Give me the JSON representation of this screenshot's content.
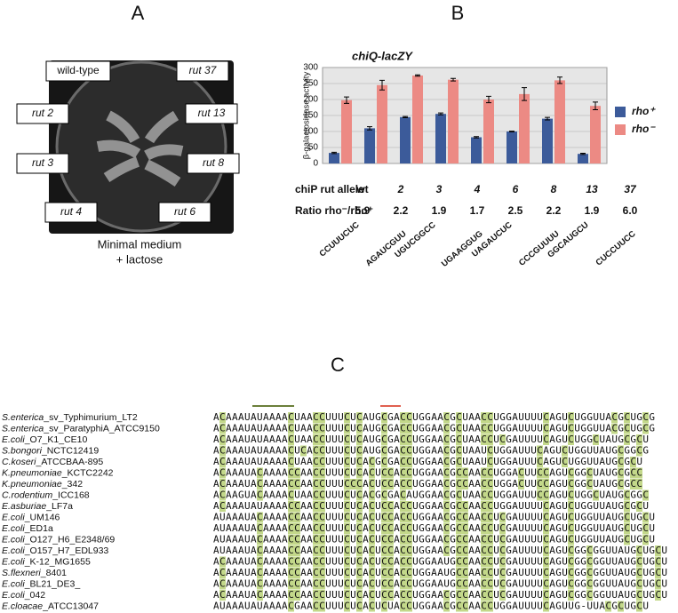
{
  "panel_a": {
    "label": "A",
    "plate_labels": [
      "wild-type",
      "rut 37",
      "rut 2",
      "rut 13",
      "rut 3",
      "rut 8",
      "rut 4",
      "rut 6"
    ],
    "caption": [
      "Minimal medium",
      "+ lactose"
    ]
  },
  "chart_data": {
    "type": "bar",
    "panel_label": "B",
    "title": "chiQ-lacZY",
    "y_label": "β-galactosidase activity",
    "categories": [
      "wt",
      "2",
      "3",
      "4",
      "6",
      "8",
      "13",
      "37"
    ],
    "series": [
      {
        "name": "rho⁺",
        "color": "#3c5b9a",
        "values": [
          33,
          110,
          145,
          155,
          82,
          100,
          140,
          30
        ],
        "errors": [
          2,
          5,
          2,
          3,
          2,
          1,
          4,
          2
        ]
      },
      {
        "name": "rho⁻",
        "color": "#ec8a84",
        "values": [
          198,
          245,
          275,
          262,
          200,
          217,
          260,
          180
        ],
        "errors": [
          10,
          15,
          2,
          4,
          10,
          20,
          10,
          12
        ]
      }
    ],
    "ylim": [
      0,
      300
    ],
    "yticks": [
      0,
      50,
      100,
      150,
      200,
      250,
      300
    ],
    "grid": true,
    "allele_title": "chiP rut allele",
    "ratio_title": "Ratio rho⁻/rho⁺",
    "ratios": [
      "5.9",
      "2.2",
      "1.9",
      "1.7",
      "2.5",
      "2.2",
      "1.9",
      "6.0"
    ],
    "sequences": [
      "CCUUUCUC",
      "AGAUCGUU",
      "UGUCGGCC",
      "UGAAGGUG",
      "UAGAUCUC",
      "CCCGUUUU",
      "GGCAUGCU",
      "CUCCUUCC"
    ]
  },
  "panel_c": {
    "label": "C",
    "rows": [
      {
        "species": "S.enterica",
        "strain": "_sv_Typhimurium_LT2",
        "sequence": "ACAAAUAUAAAACUAACCUUUCUCAUGCGACCUGGAACGCUAACCUGGAUUUUCAGUCUGGUUACGCUGCG"
      },
      {
        "species": "S.enterica",
        "strain": "_sv_ParatyphiA_ATCC9150",
        "sequence": "ACAAAUAUAAAACUAACCUUUCUCAUGCGACCUGGAACGCUAACCUGGAUUUUCAGUCUGGUUACGCUGCG"
      },
      {
        "species": "E.coli",
        "strain": "_O7_K1_CE10",
        "sequence": "ACAAAUAUAAAACUAACCUUUCUCAUGCGACCUGGAACGCUAACCUCGAUUUUCAGUCUGGCUAUGCGCU"
      },
      {
        "species": "S.bongori",
        "strain": "_NCTC12419",
        "sequence": "ACAAAUAUAAAACUCACCUUUCUCAUGCGACCUGGAACGCUAAUCUGGAUUUCAGUCUGGUUAUGCGGCG"
      },
      {
        "species": "C.koseri",
        "strain": "_ATCCBAA-895",
        "sequence": "ACAAAUAUAAAACUAACCUUUCUCACGCGACCUGGAACGCUAAUCUGGAUUUCAGUCUGGUUAUGCGCU"
      },
      {
        "species": "K.pneumoniae",
        "strain": "_KCTC2242",
        "sequence": "ACAAAUACAAAACCAACCUUUCUCACUCCACCUGGAACGCCAACCUGGACUUCCAGUCGGCUAUGCGCC"
      },
      {
        "species": "K.pneumoniae",
        "strain": "_342",
        "sequence": "ACAAAUACAAAACCAACCUUUCCCACUCCACCUGGAACGCCAACCUGGACUUCCAGUCGGCUAUGCGCC"
      },
      {
        "species": "C.rodentium",
        "strain": "_ICC168",
        "sequence": "ACAAGUACAAAACUAACCUUUCUCACGCGACAUGGAACGCUAACCUGGAUUUCCAGUCUGGCUAUGCGGC"
      },
      {
        "species": "E.asburiae",
        "strain": "_LF7a",
        "sequence": "ACAAAUAUAAAACCAACCUUUCUCACUCCACCUGGAACGCCAACCUGGAUUUUCAGUCUGGUUAUGCGCU"
      },
      {
        "species": "E.coli",
        "strain": "_UM146",
        "sequence": "AUAAAUACAAAACCAACCUUUCUCACUCCACCUGGAACGCCAACCUCGAUUUUCAGUCUGGUUAUGCUGCU"
      },
      {
        "species": "E.coli",
        "strain": "_ED1a",
        "sequence": "AUAAAUACAAAACCAACCUUUCUCACUCCACCUGGAACGCCAACCUCGAUUUUCAGUCUGGUUAUGCUGCU"
      },
      {
        "species": "E.coli",
        "strain": "_O127_H6_E2348/69",
        "sequence": "AUAAAUACAAAACCAACCUUUCUCACUCCACCUGGAACGCCAACCUCGAUUUUCAGUCUGGUUAUGCUGCU"
      },
      {
        "species": "E.coli",
        "strain": "_O157_H7_EDL933",
        "sequence": "AUAAAUACAAAACCAACCUUUCUCACUCCACCUGGAACGCCAACCUCGAUUUUCAGUCGGCGGUUAUGCUGCU"
      },
      {
        "species": "E.coli",
        "strain": "_K-12_MG1655",
        "sequence": "ACAAAUACAAAACCAACCUUUCUCACUCCACCUGGAAUGCCAACCUCGAUUUUCAGUCGGCGGUUAUGCUGCU"
      },
      {
        "species": "S.flexneri",
        "strain": "_8401",
        "sequence": "ACAAAUACAAAACCAACCUUUCUCACUCCACCUGGAAUGCCAACCUCGAUUUUCAGUCGGCGGUUAUGCUGCU"
      },
      {
        "species": "E.coli",
        "strain": "_BL21_DE3_",
        "sequence": "ACAAAUACAAAACCAACCUUUCUCACUCCACCUGGAAUGCCAACCUCGAUUUUCAGUCGGCGGUUAUGCUGCU"
      },
      {
        "species": "E.coli",
        "strain": "_042",
        "sequence": "ACAAAUACAAAACCAACCUUUCUCACUCCACCUGGAACGCCAACCUCGAUUUUCAGUCGGCGGUUAUGCUGCU"
      },
      {
        "species": "E.cloacae",
        "strain": "_ATCC13047",
        "sequence": "AUAAAUAUAAAACGAACCUUUCUCACUCUACCUGGAACGCCAACCUGGAUUUUCAGUUG-UUACGCUGCU"
      }
    ]
  }
}
